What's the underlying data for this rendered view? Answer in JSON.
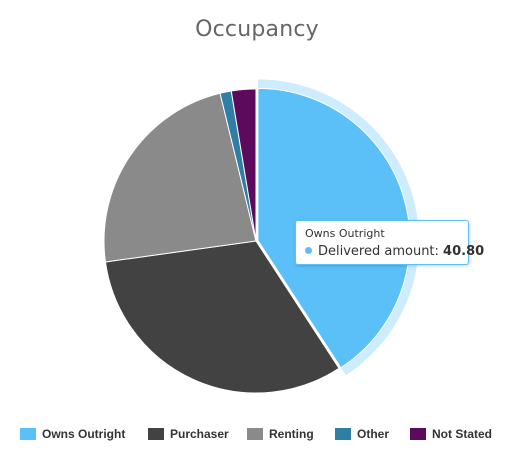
{
  "chart_data": {
    "type": "pie",
    "title": "Occupancy",
    "categories": [
      "Owns Outright",
      "Purchaser",
      "Renting",
      "Other",
      "Not Stated"
    ],
    "values": [
      40.8,
      32.0,
      23.4,
      1.2,
      2.6
    ],
    "colors": [
      "#5bc0f8",
      "#424242",
      "#8a8a8a",
      "#2f7ea6",
      "#5c0b5c"
    ],
    "hovered_slice": "Owns Outright",
    "legend_position": "bottom"
  },
  "tooltip": {
    "title": "Owns Outright",
    "label": "Delivered amount:",
    "value": "40.80"
  }
}
